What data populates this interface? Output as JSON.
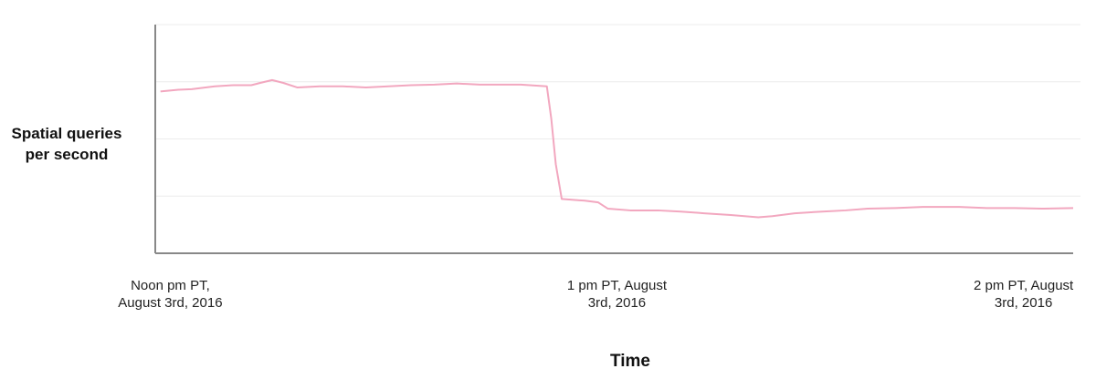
{
  "chart_data": {
    "type": "line",
    "y_label": "Spatial queries\nper second",
    "x_label": "Time",
    "x": [
      -1.3,
      1.1,
      2.9,
      6.0,
      8.5,
      10.9,
      12.1,
      13.7,
      15.2,
      17.1,
      20.1,
      23.2,
      26.3,
      29.3,
      32.4,
      35.5,
      38.5,
      41.6,
      44.7,
      47.1,
      50.6,
      51.2,
      51.8,
      52.6,
      55.7,
      57.5,
      58.8,
      61.8,
      65.5,
      68.6,
      71.7,
      75.3,
      79.0,
      80.9,
      83.9,
      87.6,
      90.7,
      93.7,
      97.4,
      101.1,
      106.0,
      109.7,
      113.4,
      117.1,
      121.3
    ],
    "series": [
      {
        "color": "#f2a7bf",
        "values": [
          2.83,
          2.86,
          2.87,
          2.92,
          2.94,
          2.94,
          2.98,
          3.03,
          2.98,
          2.9,
          2.92,
          2.92,
          2.9,
          2.92,
          2.94,
          2.95,
          2.97,
          2.95,
          2.95,
          2.95,
          2.92,
          2.35,
          1.56,
          0.95,
          0.92,
          0.89,
          0.78,
          0.75,
          0.75,
          0.73,
          0.7,
          0.67,
          0.63,
          0.65,
          0.7,
          0.73,
          0.75,
          0.78,
          0.79,
          0.81,
          0.81,
          0.79,
          0.79,
          0.78,
          0.79
        ]
      }
    ],
    "xlim": [
      -2,
      121.3
    ],
    "xticks": [
      {
        "value": 0,
        "label": "Noon pm PT,\nAugust 3rd, 2016"
      },
      {
        "value": 60,
        "label": "1 pm PT, August\n3rd, 2016"
      },
      {
        "value": 120,
        "label": "2 pm PT, August\n3rd, 2016"
      }
    ],
    "ylim": [
      0,
      4
    ],
    "grid_lines": [
      1,
      2,
      3,
      4
    ],
    "grid": true
  }
}
